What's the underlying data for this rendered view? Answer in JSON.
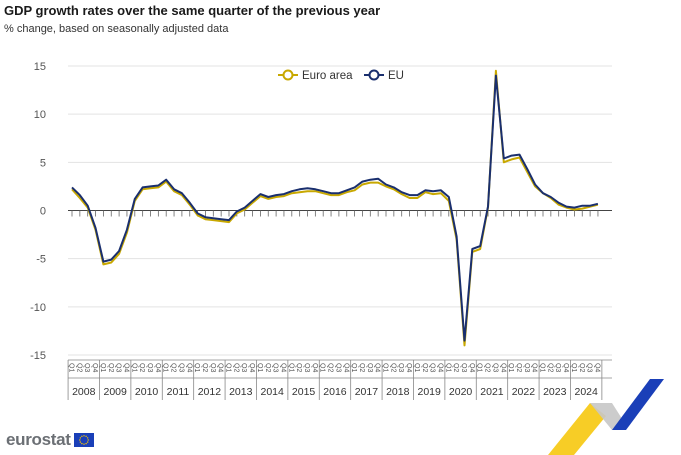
{
  "header": {
    "title": "GDP growth rates over the same quarter of the previous year",
    "subtitle": "% change, based on seasonally adjusted data"
  },
  "footer": {
    "logo_text": "eurostat"
  },
  "colors": {
    "euro_area": "#c8a800",
    "eu": "#1a2f6e",
    "grid": "#e3e3e3",
    "axis_text": "#555555",
    "deco_yellow": "#f6c400",
    "deco_blue": "#1a3fb8",
    "deco_grey": "#c7c7c7"
  },
  "chart_data": {
    "type": "line",
    "title": "GDP growth rates over the same quarter of the previous year",
    "subtitle": "% change, based on seasonally adjusted data",
    "quarter_labels": [
      "Q1",
      "Q2",
      "Q3",
      "Q4"
    ],
    "years": [
      "2008",
      "2009",
      "2010",
      "2011",
      "2012",
      "2013",
      "2014",
      "2015",
      "2016",
      "2017",
      "2018",
      "2019",
      "2020",
      "2021",
      "2022",
      "2023",
      "2024"
    ],
    "ylim": [
      -15,
      15
    ],
    "yticks": [
      15,
      10,
      5,
      0,
      -5,
      -10,
      -15
    ],
    "ytick_labels": [
      "15",
      "10",
      "5",
      "0",
      "-5",
      "-10",
      "-15"
    ],
    "grid": true,
    "legend_position": "top-center",
    "series": [
      {
        "name": "Euro area",
        "values": [
          2.2,
          1.3,
          0.3,
          -2.0,
          -5.6,
          -5.4,
          -4.5,
          -2.3,
          1.0,
          2.2,
          2.3,
          2.4,
          3.0,
          2.0,
          1.6,
          0.6,
          -0.5,
          -0.9,
          -1.0,
          -1.1,
          -1.2,
          -0.3,
          0.1,
          0.8,
          1.5,
          1.2,
          1.4,
          1.5,
          1.8,
          1.9,
          2.0,
          2.0,
          1.8,
          1.6,
          1.6,
          1.9,
          2.1,
          2.7,
          2.9,
          2.9,
          2.5,
          2.2,
          1.7,
          1.3,
          1.3,
          1.9,
          1.7,
          1.8,
          1.0,
          -3.0,
          -14.0,
          -4.3,
          -4.0,
          0.3,
          14.5,
          5.0,
          5.3,
          5.5,
          4.0,
          2.5,
          1.8,
          1.3,
          0.6,
          0.3,
          0.1,
          0.2,
          0.4,
          0.6
        ]
      },
      {
        "name": "EU",
        "values": [
          2.4,
          1.6,
          0.5,
          -1.8,
          -5.3,
          -5.1,
          -4.2,
          -2.0,
          1.2,
          2.4,
          2.5,
          2.6,
          3.2,
          2.2,
          1.8,
          0.8,
          -0.3,
          -0.7,
          -0.8,
          -0.9,
          -1.0,
          -0.1,
          0.3,
          1.0,
          1.7,
          1.4,
          1.6,
          1.7,
          2.0,
          2.2,
          2.3,
          2.2,
          2.0,
          1.8,
          1.8,
          2.1,
          2.4,
          3.0,
          3.2,
          3.3,
          2.7,
          2.4,
          1.9,
          1.6,
          1.6,
          2.1,
          2.0,
          2.1,
          1.4,
          -2.7,
          -13.5,
          -4.0,
          -3.7,
          0.4,
          14.0,
          5.4,
          5.7,
          5.8,
          4.3,
          2.7,
          1.8,
          1.4,
          0.8,
          0.4,
          0.3,
          0.5,
          0.5,
          0.7
        ]
      }
    ]
  }
}
